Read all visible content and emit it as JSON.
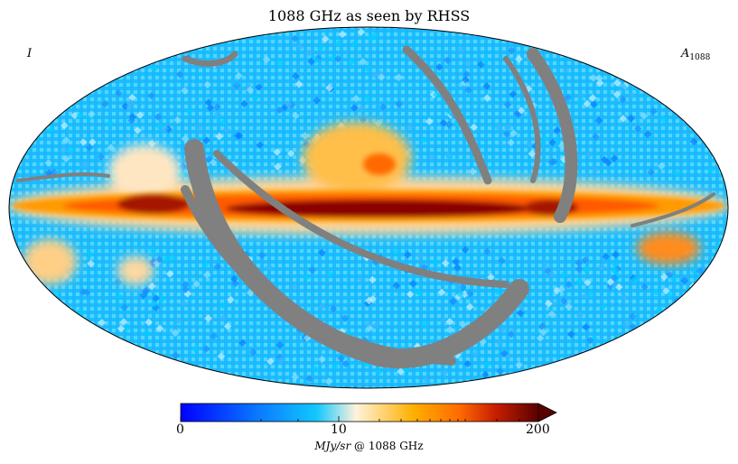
{
  "title": "1088 GHz as seen by RHSS",
  "stokes_label": "I",
  "component_label": {
    "symbol": "A",
    "subscript": "1088"
  },
  "colorbar": {
    "min_label": "0",
    "mid_label": "10",
    "max_label": "200",
    "unit_symbol": "MJy/sr",
    "unit_suffix": "@ 1088 GHz",
    "stops": [
      "#0000ff",
      "#0a7bff",
      "#12c8ff",
      "#fff3dc",
      "#ffb000",
      "#ff6a00",
      "#c81e00",
      "#5a0000"
    ],
    "extend": "max"
  },
  "colors": {
    "masked": "#808080",
    "background": "#ffffff"
  }
}
